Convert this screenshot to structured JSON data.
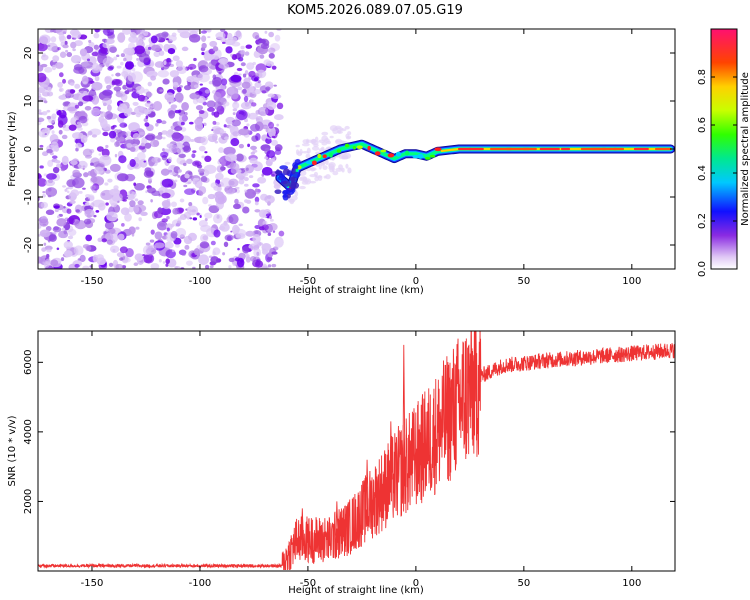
{
  "title": "KOM5.2026.089.07.05.G19",
  "chart_data": [
    {
      "type": "heatmap",
      "title": "KOM5.2026.089.07.05.G19",
      "xlabel": "Height of straight line (km)",
      "ylabel": "Frequency (Hz)",
      "xlim": [
        -175,
        120
      ],
      "ylim": [
        -25,
        25
      ],
      "xticks": [
        -150,
        -100,
        -50,
        0,
        50,
        100
      ],
      "yticks": [
        -20,
        -10,
        0,
        10,
        20
      ],
      "noise_region_end_km": -65,
      "ridge_trace": [
        {
          "x": -63,
          "y": -6
        },
        {
          "x": -58,
          "y": -8
        },
        {
          "x": -55,
          "y": -4
        },
        {
          "x": -50,
          "y": -3
        },
        {
          "x": -45,
          "y": -2
        },
        {
          "x": -40,
          "y": -1
        },
        {
          "x": -35,
          "y": 0
        },
        {
          "x": -30,
          "y": 0.5
        },
        {
          "x": -25,
          "y": 1
        },
        {
          "x": -20,
          "y": 0
        },
        {
          "x": -15,
          "y": -1
        },
        {
          "x": -10,
          "y": -2
        },
        {
          "x": -5,
          "y": -1
        },
        {
          "x": 0,
          "y": -1
        },
        {
          "x": 5,
          "y": -1.5
        },
        {
          "x": 10,
          "y": -0.5
        },
        {
          "x": 20,
          "y": 0
        },
        {
          "x": 50,
          "y": 0
        },
        {
          "x": 80,
          "y": 0
        },
        {
          "x": 118,
          "y": 0
        }
      ],
      "colorbar": {
        "label": "Normalized spectral amplitude",
        "range": [
          0,
          1
        ],
        "ticks": [
          0.0,
          0.2,
          0.4,
          0.6,
          0.8
        ]
      }
    },
    {
      "type": "line",
      "xlabel": "Height of straight line (km)",
      "ylabel": "SNR (10 * v/v)",
      "xlim": [
        -175,
        120
      ],
      "ylim": [
        0,
        6900
      ],
      "xticks": [
        -150,
        -100,
        -50,
        0,
        50,
        100
      ],
      "yticks": [
        2000,
        4000,
        6000
      ],
      "series": [
        {
          "name": "SNR",
          "color": "#ee3333",
          "trend": [
            {
              "x": -175,
              "y": 150
            },
            {
              "x": -62,
              "y": 150
            },
            {
              "x": -55,
              "y": 900
            },
            {
              "x": -40,
              "y": 900
            },
            {
              "x": -30,
              "y": 1300
            },
            {
              "x": -20,
              "y": 2000
            },
            {
              "x": -10,
              "y": 2700
            },
            {
              "x": 0,
              "y": 3300
            },
            {
              "x": 10,
              "y": 4000
            },
            {
              "x": 20,
              "y": 4800
            },
            {
              "x": 30,
              "y": 5600
            },
            {
              "x": 40,
              "y": 5900
            },
            {
              "x": 60,
              "y": 6050
            },
            {
              "x": 80,
              "y": 6150
            },
            {
              "x": 100,
              "y": 6250
            },
            {
              "x": 120,
              "y": 6350
            }
          ],
          "spikes": [
            {
              "x": -53,
              "y": 1800
            },
            {
              "x": -37,
              "y": 2000
            },
            {
              "x": -23,
              "y": 3200
            },
            {
              "x": -12,
              "y": 4300
            },
            {
              "x": -6,
              "y": 6500
            }
          ]
        }
      ]
    }
  ]
}
